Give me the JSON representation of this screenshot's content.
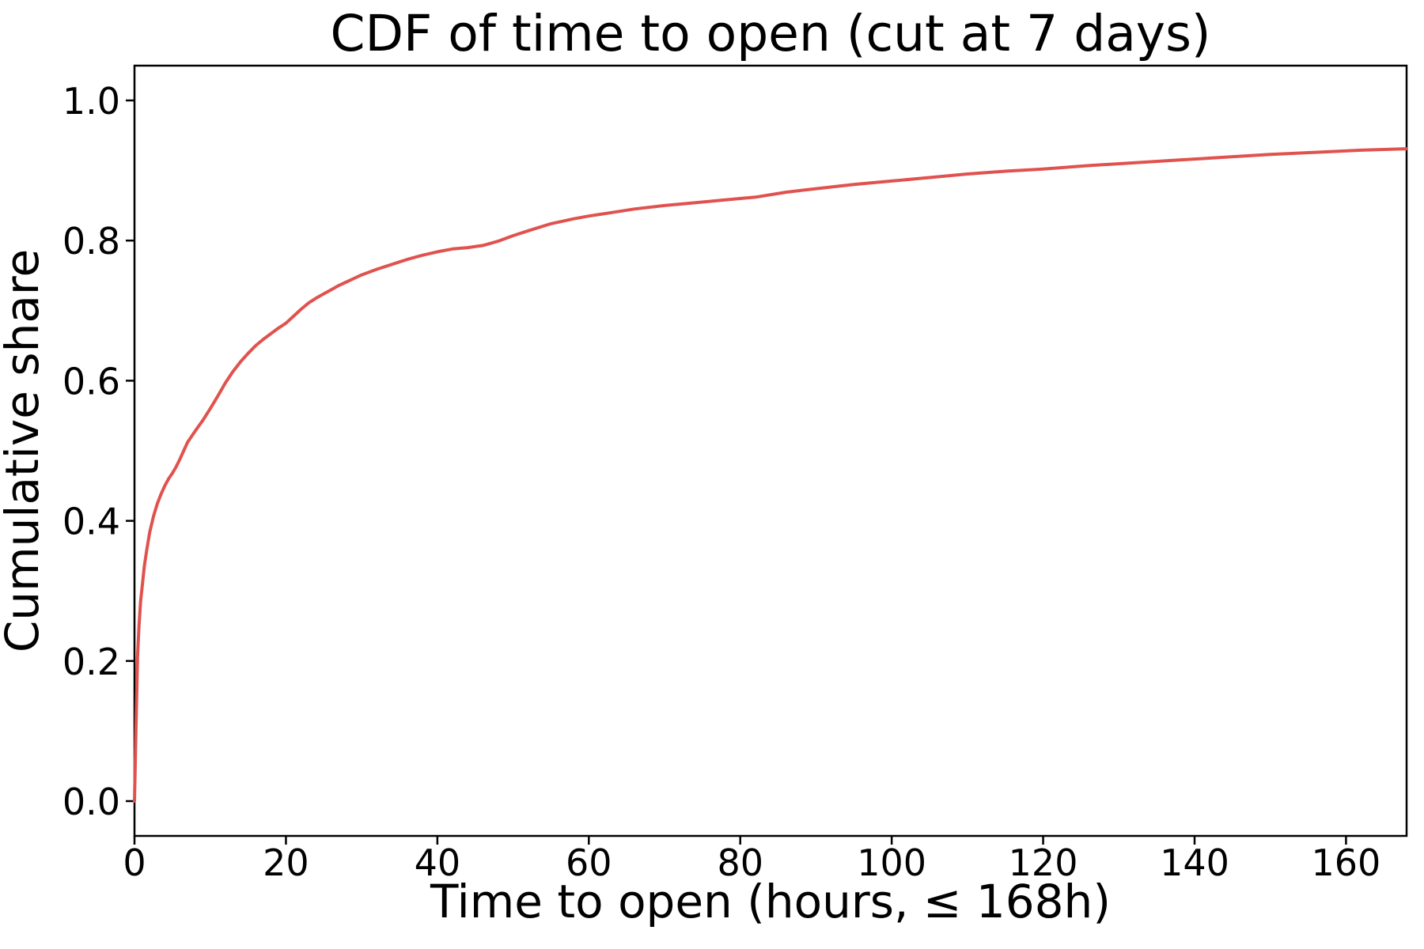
{
  "chart_data": {
    "type": "line",
    "title": "CDF of time to open (cut at 7 days)",
    "xlabel": "Time to open (hours, ≤ 168h)",
    "ylabel": "Cumulative share",
    "xlim": [
      0,
      168
    ],
    "ylim": [
      -0.05,
      1.05
    ],
    "grid": false,
    "legend_position": "none",
    "line_color": "#e0524e",
    "background_color": "#ffffff",
    "x_ticks": [
      {
        "value": 0,
        "label": "0"
      },
      {
        "value": 20,
        "label": "20"
      },
      {
        "value": 40,
        "label": "40"
      },
      {
        "value": 60,
        "label": "60"
      },
      {
        "value": 80,
        "label": "80"
      },
      {
        "value": 100,
        "label": "100"
      },
      {
        "value": 120,
        "label": "120"
      },
      {
        "value": 140,
        "label": "140"
      },
      {
        "value": 160,
        "label": "160"
      }
    ],
    "y_ticks": [
      {
        "value": 0.0,
        "label": "0.0"
      },
      {
        "value": 0.2,
        "label": "0.2"
      },
      {
        "value": 0.4,
        "label": "0.4"
      },
      {
        "value": 0.6,
        "label": "0.6"
      },
      {
        "value": 0.8,
        "label": "0.8"
      },
      {
        "value": 1.0,
        "label": "1.0"
      }
    ],
    "series": [
      {
        "name": "CDF of time to open",
        "points": [
          [
            0,
            0
          ],
          [
            0.1,
            0.055
          ],
          [
            0.2,
            0.105
          ],
          [
            0.3,
            0.155
          ],
          [
            0.4,
            0.205
          ],
          [
            0.6,
            0.25
          ],
          [
            0.8,
            0.285
          ],
          [
            1,
            0.305
          ],
          [
            1.3,
            0.335
          ],
          [
            1.6,
            0.357
          ],
          [
            2,
            0.383
          ],
          [
            2.5,
            0.406
          ],
          [
            3,
            0.424
          ],
          [
            3.5,
            0.438
          ],
          [
            4,
            0.45
          ],
          [
            4.5,
            0.46
          ],
          [
            5,
            0.468
          ],
          [
            5.5,
            0.477
          ],
          [
            6,
            0.488
          ],
          [
            6.5,
            0.5
          ],
          [
            7,
            0.512
          ],
          [
            8,
            0.528
          ],
          [
            9,
            0.543
          ],
          [
            10,
            0.56
          ],
          [
            11,
            0.578
          ],
          [
            12,
            0.597
          ],
          [
            13,
            0.613
          ],
          [
            14,
            0.627
          ],
          [
            15,
            0.639
          ],
          [
            16,
            0.65
          ],
          [
            17,
            0.659
          ],
          [
            18,
            0.667
          ],
          [
            19,
            0.675
          ],
          [
            20,
            0.682
          ],
          [
            21,
            0.692
          ],
          [
            22,
            0.702
          ],
          [
            23,
            0.711
          ],
          [
            24,
            0.718
          ],
          [
            25,
            0.724
          ],
          [
            26,
            0.73
          ],
          [
            27,
            0.736
          ],
          [
            28,
            0.741
          ],
          [
            29,
            0.746
          ],
          [
            30,
            0.751
          ],
          [
            32,
            0.759
          ],
          [
            34,
            0.766
          ],
          [
            36,
            0.773
          ],
          [
            38,
            0.779
          ],
          [
            40,
            0.784
          ],
          [
            42,
            0.788
          ],
          [
            44,
            0.79
          ],
          [
            46,
            0.793
          ],
          [
            48,
            0.799
          ],
          [
            50,
            0.807
          ],
          [
            52,
            0.814
          ],
          [
            55,
            0.824
          ],
          [
            58,
            0.831
          ],
          [
            60,
            0.835
          ],
          [
            63,
            0.84
          ],
          [
            66,
            0.845
          ],
          [
            70,
            0.85
          ],
          [
            74,
            0.854
          ],
          [
            78,
            0.858
          ],
          [
            82,
            0.862
          ],
          [
            86,
            0.869
          ],
          [
            90,
            0.874
          ],
          [
            95,
            0.88
          ],
          [
            100,
            0.885
          ],
          [
            105,
            0.89
          ],
          [
            110,
            0.895
          ],
          [
            115,
            0.899
          ],
          [
            120,
            0.902
          ],
          [
            126,
            0.907
          ],
          [
            132,
            0.911
          ],
          [
            138,
            0.915
          ],
          [
            144,
            0.919
          ],
          [
            150,
            0.923
          ],
          [
            156,
            0.926
          ],
          [
            162,
            0.929
          ],
          [
            168,
            0.931
          ]
        ]
      }
    ]
  }
}
